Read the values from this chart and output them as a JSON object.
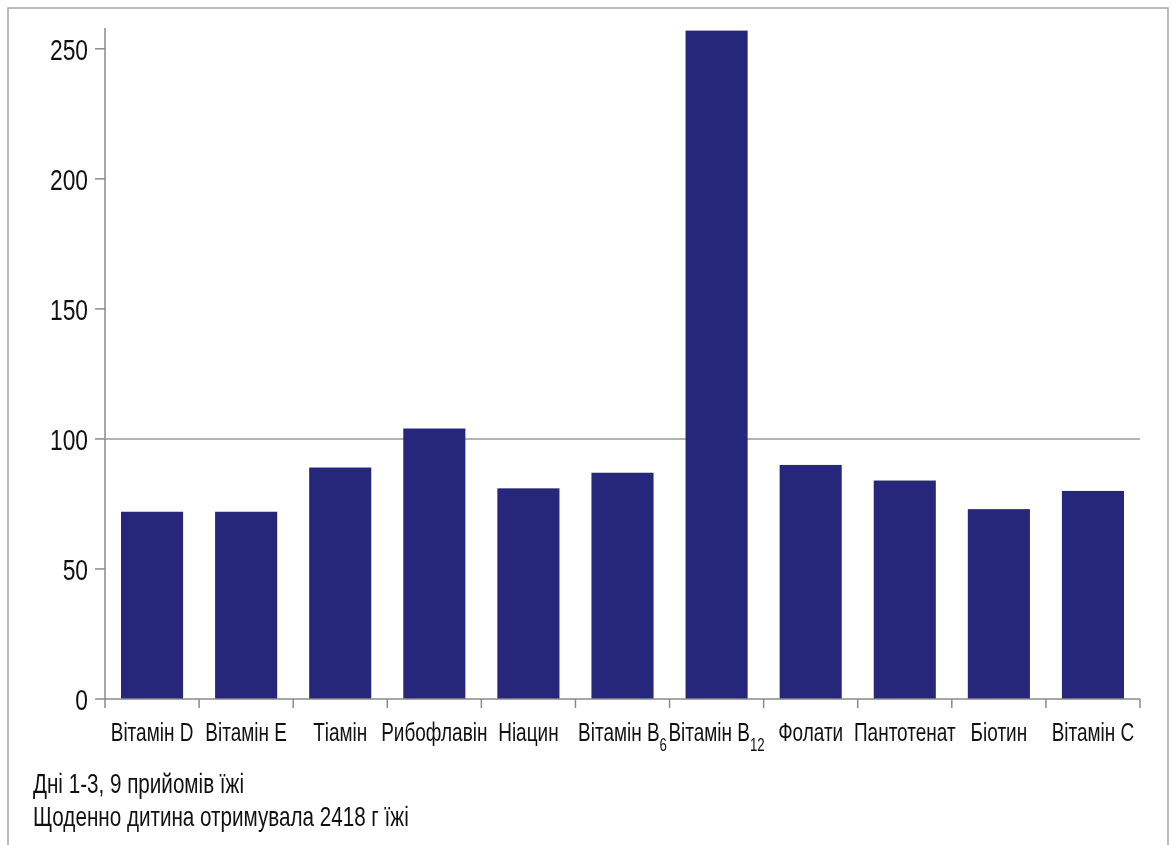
{
  "chart_data": {
    "type": "bar",
    "categories": [
      "Вітамін D",
      "Вітамін E",
      "Тіамін",
      "Рибофлавін",
      "Ніацин",
      "Вітамін B$_{6}$",
      "Вітамін B$_{12}$",
      "Фолати",
      "Пантотенат",
      "Біотин",
      "Вітамін C"
    ],
    "values": [
      72,
      72,
      89,
      104,
      81,
      87,
      257,
      90,
      84,
      73,
      80
    ],
    "color": "#26277a",
    "ylim": [
      0,
      258
    ],
    "yticks": [
      0,
      50,
      100,
      150,
      200,
      250
    ],
    "ref_lines": [
      {
        "axis": "y",
        "value": 100,
        "color": "#9a9a9a"
      }
    ],
    "annotations": [
      "Дні 1-3, 9 прийомів їжі",
      "Щоденно дитина отримувала 2418 г їжі"
    ]
  }
}
